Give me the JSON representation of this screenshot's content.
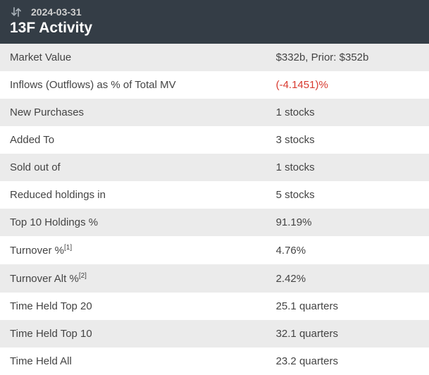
{
  "header": {
    "date": "2024-03-31",
    "title": "13F Activity",
    "bg_color": "#343d46",
    "title_color": "#ffffff",
    "date_color": "#d0d0d0"
  },
  "table": {
    "row_odd_bg": "#ebebeb",
    "row_even_bg": "#ffffff",
    "text_color": "#444444",
    "negative_color": "#d83a2f",
    "font_size": 15,
    "label_col_width_pct": 62,
    "rows": [
      {
        "label": "Market Value",
        "value": "$332b, Prior: $352b"
      },
      {
        "label": "Inflows (Outflows) as % of Total MV",
        "value": "(-4.1451)%",
        "negative": true
      },
      {
        "label": "New Purchases",
        "value": "1 stocks"
      },
      {
        "label": "Added To",
        "value": "3 stocks"
      },
      {
        "label": "Sold out of",
        "value": "1 stocks"
      },
      {
        "label": "Reduced holdings in",
        "value": "5 stocks"
      },
      {
        "label": "Top 10 Holdings %",
        "value": "91.19%"
      },
      {
        "label": "Turnover %",
        "sup": "[1]",
        "value": "4.76%"
      },
      {
        "label": "Turnover Alt %",
        "sup": "[2]",
        "value": "2.42%"
      },
      {
        "label": "Time Held Top 20",
        "value": "25.1 quarters"
      },
      {
        "label": "Time Held Top 10",
        "value": "32.1 quarters"
      },
      {
        "label": "Time Held All",
        "value": "23.2 quarters"
      }
    ]
  }
}
